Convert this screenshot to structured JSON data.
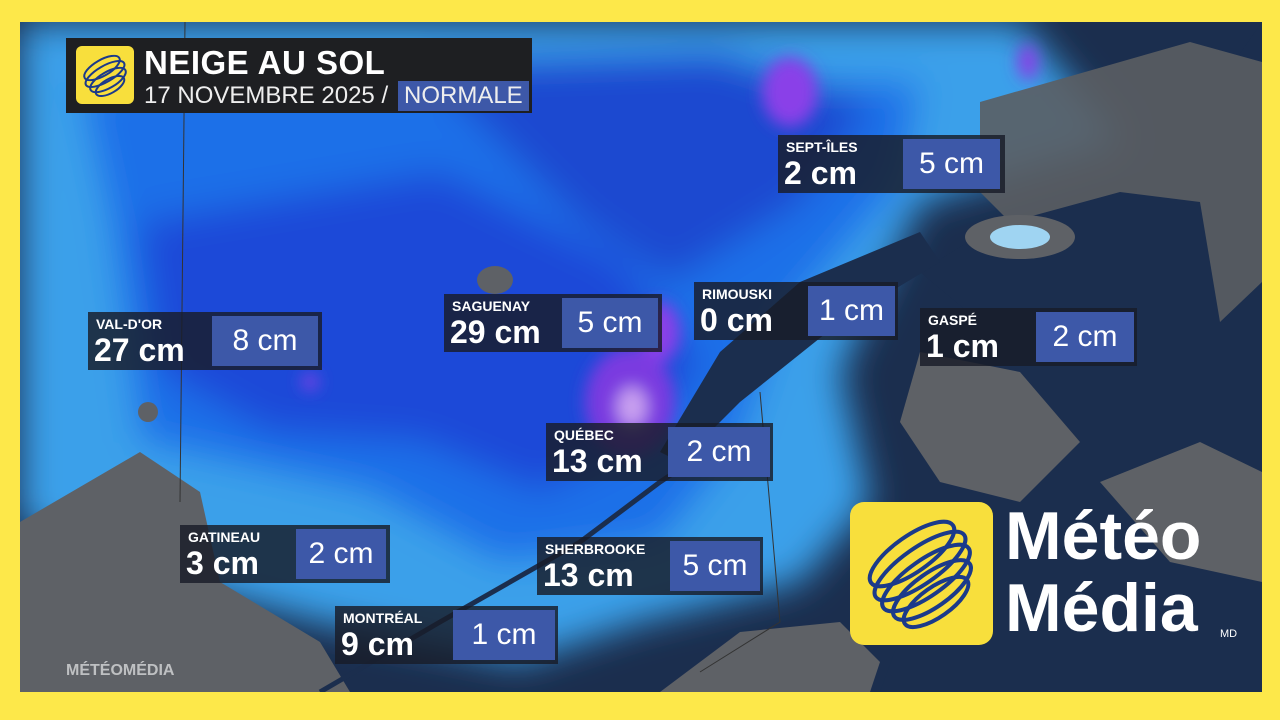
{
  "header": {
    "title": "NEIGE AU SOL",
    "date": "17 NOVEMBRE 2025 /",
    "mode": "NORMALE"
  },
  "locations": [
    {
      "city": "SEPT-ÎLES",
      "value": "2 cm",
      "normal": "5 cm"
    },
    {
      "city": "VAL-D'OR",
      "value": "27 cm",
      "normal": "8 cm"
    },
    {
      "city": "SAGUENAY",
      "value": "29 cm",
      "normal": "5 cm"
    },
    {
      "city": "RIMOUSKI",
      "value": "0 cm",
      "normal": "1 cm"
    },
    {
      "city": "GASPÉ",
      "value": "1 cm",
      "normal": "2 cm"
    },
    {
      "city": "QUÉBEC",
      "value": "13 cm",
      "normal": "2 cm"
    },
    {
      "city": "GATINEAU",
      "value": "3 cm",
      "normal": "2 cm"
    },
    {
      "city": "SHERBROOKE",
      "value": "13 cm",
      "normal": "5 cm"
    },
    {
      "city": "MONTRÉAL",
      "value": "9 cm",
      "normal": "1 cm"
    }
  ],
  "brand": {
    "line1": "Météo",
    "line2": "Média",
    "mark": "MD",
    "watermark": "MÉTÉOMÉDIA"
  },
  "colors": {
    "frame": "#fde84a",
    "normal_box": "#3d58a8",
    "label_box": "#191c28",
    "logo": "#f8df3c"
  }
}
